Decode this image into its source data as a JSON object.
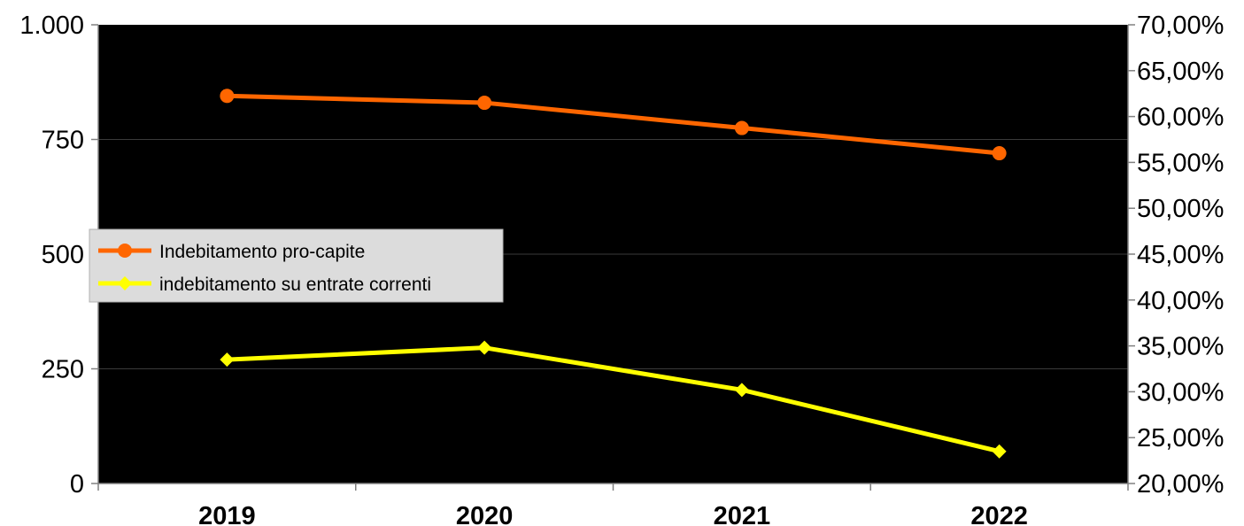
{
  "chart_data": {
    "type": "line",
    "categories": [
      "2019",
      "2020",
      "2021",
      "2022"
    ],
    "series": [
      {
        "name": "Indebitamento pro-capite",
        "axis": "left",
        "values": [
          845,
          830,
          775,
          720
        ],
        "color": "#ff6600",
        "marker": "circle"
      },
      {
        "name": "indebitamento su entrate correnti",
        "axis": "right",
        "values": [
          0.335,
          0.348,
          0.302,
          0.235
        ],
        "color": "#ffff00",
        "marker": "diamond"
      }
    ],
    "y_left": {
      "ylim": [
        0,
        1000
      ],
      "ticks": [
        0,
        250,
        500,
        750,
        1000
      ],
      "tick_labels": [
        "0",
        "250",
        "500",
        "750",
        "1.000"
      ]
    },
    "y_right": {
      "ylim": [
        0.2,
        0.7
      ],
      "ticks": [
        0.2,
        0.25,
        0.3,
        0.35,
        0.4,
        0.45,
        0.5,
        0.55,
        0.6,
        0.65,
        0.7
      ],
      "tick_labels": [
        "20,00%",
        "25,00%",
        "30,00%",
        "35,00%",
        "40,00%",
        "45,00%",
        "50,00%",
        "55,00%",
        "60,00%",
        "65,00%",
        "70,00%"
      ]
    },
    "plot_background": "#000000",
    "grid": true,
    "legend_position": "left"
  }
}
